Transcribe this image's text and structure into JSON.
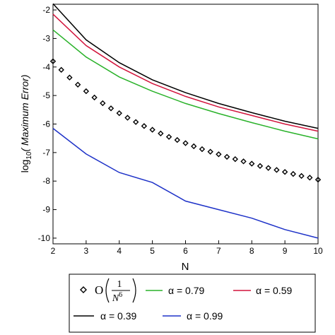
{
  "chart_data": {
    "type": "line",
    "xlabel": "N",
    "ylabel_main": "log",
    "ylabel_sub": "10",
    "ylabel_paren": "( Maximum Error)",
    "xlim": [
      2,
      10
    ],
    "ylim": [
      -10.2,
      -1.8
    ],
    "x_ticks": [
      2,
      3,
      4,
      5,
      6,
      7,
      8,
      9,
      10
    ],
    "y_ticks": [
      -2,
      -3,
      -4,
      -5,
      -6,
      -7,
      -8,
      -9,
      -10
    ],
    "x": [
      2,
      3,
      4,
      5,
      6,
      7,
      8,
      9,
      10
    ],
    "series": [
      {
        "name": "α = 0.39",
        "color": "#000000",
        "style": "line",
        "values": [
          -1.78,
          -3.05,
          -3.85,
          -4.45,
          -4.9,
          -5.28,
          -5.6,
          -5.9,
          -6.15
        ]
      },
      {
        "name": "α = 0.59",
        "color": "#d2143c",
        "style": "line",
        "values": [
          -2.15,
          -3.25,
          -4.0,
          -4.58,
          -5.03,
          -5.4,
          -5.7,
          -6.0,
          -6.25
        ]
      },
      {
        "name": "α = 0.79",
        "color": "#2ab22a",
        "style": "line",
        "values": [
          -2.7,
          -3.65,
          -4.35,
          -4.85,
          -5.28,
          -5.63,
          -5.95,
          -6.25,
          -6.52
        ]
      },
      {
        "name": "α = 0.99",
        "color": "#1e32c8",
        "style": "line",
        "values": [
          -6.15,
          -7.05,
          -7.7,
          -8.05,
          -8.7,
          -9.0,
          -9.3,
          -9.7,
          -10.0
        ]
      },
      {
        "name": "O(1/N^6)",
        "color": "#000000",
        "style": "diamonds",
        "x": [
          2,
          2.25,
          2.5,
          2.75,
          3,
          3.25,
          3.5,
          3.75,
          4,
          4.25,
          4.5,
          4.75,
          5,
          5.25,
          5.5,
          5.75,
          6,
          6.25,
          6.5,
          6.75,
          7,
          7.25,
          7.5,
          7.75,
          8,
          8.25,
          8.5,
          8.75,
          9,
          9.25,
          9.5,
          9.75,
          10
        ],
        "values": [
          -3.8,
          -4.1,
          -4.37,
          -4.62,
          -4.85,
          -5.07,
          -5.27,
          -5.45,
          -5.62,
          -5.78,
          -5.93,
          -6.07,
          -6.2,
          -6.33,
          -6.45,
          -6.56,
          -6.67,
          -6.78,
          -6.88,
          -6.97,
          -7.06,
          -7.15,
          -7.23,
          -7.31,
          -7.39,
          -7.47,
          -7.54,
          -7.61,
          -7.68,
          -7.75,
          -7.82,
          -7.88,
          -7.95
        ]
      }
    ]
  },
  "legend": {
    "o_prefix": "O",
    "o_numerator": "1",
    "o_base": "N",
    "o_exponent": "6",
    "items": [
      {
        "label": "α = 0.79",
        "color": "#2ab22a"
      },
      {
        "label": "α = 0.59",
        "color": "#d2143c"
      },
      {
        "label": "α = 0.39",
        "color": "#000000"
      },
      {
        "label": "α = 0.99",
        "color": "#1e32c8"
      }
    ]
  }
}
